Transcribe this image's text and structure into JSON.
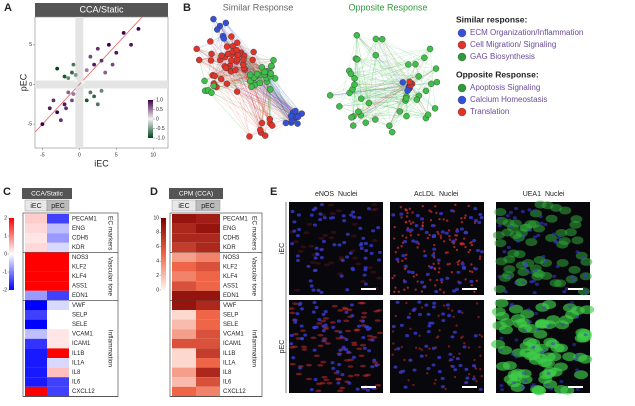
{
  "panel_a": {
    "letter": "A",
    "type": "scatter",
    "title": "CCA/Static",
    "xlabel": "iEC",
    "ylabel": "pEC",
    "xlim": [
      -6,
      12
    ],
    "ylim": [
      -8,
      8.5
    ],
    "xticks": [
      -5,
      0,
      5,
      10
    ],
    "yticks": [
      -5,
      0,
      5
    ],
    "points": {
      "x": [
        2,
        3,
        4,
        5,
        1.5,
        6,
        3.5,
        7,
        2.5,
        1,
        4.5,
        8,
        -2,
        -3,
        -1.5,
        -4,
        -2.5,
        -1,
        -3.5,
        -5,
        -1.8,
        -0.8,
        -1,
        -2,
        -0.8,
        -1.5,
        -0.5,
        1.5,
        2,
        3,
        1,
        -3,
        2.5,
        0.5,
        -0.3,
        0.2,
        -0.5
      ],
      "y": [
        2.5,
        3,
        5,
        4,
        3.5,
        6.5,
        1.5,
        5,
        4.5,
        1.8,
        2.5,
        7,
        -2.5,
        -3.5,
        -1,
        -3,
        -4.5,
        -2,
        -2,
        -5,
        -3,
        -1.2,
        1.5,
        1,
        2.5,
        0.8,
        1.2,
        -1,
        -1.5,
        -0.8,
        -2,
        2,
        -2.5,
        0.3,
        -0.4,
        -0.6,
        0.5
      ],
      "c": [
        0.9,
        0.8,
        1,
        0.9,
        0.7,
        1,
        0.6,
        0.9,
        0.8,
        0.5,
        0.7,
        1,
        0.9,
        1,
        0.6,
        0.9,
        0.8,
        0.7,
        0.8,
        1,
        0.8,
        0.5,
        -0.8,
        -0.9,
        -0.7,
        -0.6,
        -0.5,
        -0.7,
        -0.8,
        -0.6,
        -0.9,
        -1,
        -0.7,
        0,
        0.1,
        -0.1,
        0
      ]
    },
    "clim": [
      -1,
      1
    ],
    "cmap": [
      "#00441b",
      "#f2f2f2",
      "#40004b"
    ],
    "cticks": [
      {
        "value": 1,
        "label": "1.0"
      },
      0.5,
      0,
      -0.5,
      {
        "value": -1,
        "label": "-1.0"
      }
    ]
  },
  "panel_b": {
    "letter": "B",
    "titles": [
      "Similar Response",
      "Opposite Response"
    ],
    "legend": [
      {
        "heading": "Similar response:",
        "color": "#5b3a8c",
        "items": [
          {
            "label": "ECM Organization/Inflammation",
            "color": "#3550d8"
          },
          {
            "label": "Cell Migration/ Signaling",
            "color": "#e0342b"
          },
          {
            "label": "GAG Biosynthesis",
            "color": "#2e9a3a"
          }
        ]
      },
      {
        "heading": "Opposite Response:",
        "color": "#2e9a3a",
        "items": [
          {
            "label": "Apoptosis Signaling",
            "color": "#2e9a3a"
          },
          {
            "label": "Calcium Homeostasis",
            "color": "#3550d8"
          },
          {
            "label": "Translation",
            "color": "#e0342b"
          }
        ]
      }
    ]
  },
  "panel_c": {
    "letter": "C",
    "title": "CCA/Static",
    "columns": [
      "iEC",
      "pEC"
    ],
    "clim": [
      -2,
      2
    ],
    "cmap": [
      "#0000ff",
      "#ffffff",
      "#ff0000"
    ],
    "cticks": [
      2,
      1,
      0,
      -1,
      -2
    ],
    "groups": [
      {
        "label": "EC markers",
        "genes": [
          "PECAM1",
          "ENG",
          "CDH5",
          "KDR"
        ],
        "values": [
          [
            0.4,
            -1.5
          ],
          [
            0.3,
            -0.5
          ],
          [
            0.2,
            -0.8
          ],
          [
            0.3,
            -0.3
          ]
        ]
      },
      {
        "label": "Vascular tone",
        "genes": [
          "NOS3",
          "KLF2",
          "KLF4",
          "ASS1",
          "EDN1"
        ],
        "values": [
          [
            2,
            2
          ],
          [
            2,
            2
          ],
          [
            2,
            2
          ],
          [
            2,
            2
          ],
          [
            -0.8,
            -1.5
          ]
        ]
      },
      {
        "label": "Inflammation",
        "genes": [
          "VWF",
          "SELP",
          "SELE",
          "VCAM1",
          "ICAM1",
          "IL1B",
          "IL1A",
          "IL8",
          "IL6",
          "CXCL12"
        ],
        "values": [
          [
            -2,
            -0.3
          ],
          [
            -1.5,
            0
          ],
          [
            -2,
            0
          ],
          [
            -0.5,
            0.2
          ],
          [
            -1.6,
            0.2
          ],
          [
            -1.8,
            2
          ],
          [
            -1.8,
            -0.3
          ],
          [
            -1.8,
            0.5
          ],
          [
            -1.8,
            -1.5
          ],
          [
            2,
            -1.5
          ]
        ]
      }
    ]
  },
  "panel_d": {
    "letter": "D",
    "title": "CPM (CCA)",
    "columns": [
      "iEC",
      "pEC"
    ],
    "clim": [
      0,
      10
    ],
    "cmap": [
      "#fff5f0",
      "#ef6548",
      "#7f0000"
    ],
    "cticks": [
      10,
      8,
      6,
      4,
      2,
      0
    ],
    "groups": [
      {
        "label": "EC markers",
        "genes": [
          "PECAM1",
          "ENG",
          "CDH5",
          "KDR"
        ],
        "values": [
          [
            9,
            8.5
          ],
          [
            8,
            9
          ],
          [
            8,
            8
          ],
          [
            7,
            8
          ]
        ]
      },
      {
        "label": "Vascular tone",
        "genes": [
          "NOS3",
          "KLF2",
          "KLF4",
          "ASS1",
          "EDN1"
        ],
        "values": [
          [
            3,
            4
          ],
          [
            5,
            6
          ],
          [
            4,
            5
          ],
          [
            6,
            5
          ],
          [
            9,
            9
          ]
        ]
      },
      {
        "label": "Inflammation",
        "genes": [
          "VWF",
          "SELP",
          "SELE",
          "VCAM1",
          "ICAM1",
          "IL1B",
          "IL1A",
          "IL8",
          "IL6",
          "CXCL12"
        ],
        "values": [
          [
            9,
            8
          ],
          [
            1,
            5
          ],
          [
            2,
            5
          ],
          [
            3,
            6
          ],
          [
            6,
            6
          ],
          [
            1,
            7
          ],
          [
            1,
            5
          ],
          [
            3,
            8
          ],
          [
            2,
            6
          ],
          [
            5,
            4
          ]
        ]
      }
    ]
  },
  "panel_e": {
    "letter": "E",
    "columns": [
      {
        "stain": "eNOS",
        "stain_color": "#e0342b",
        "counterstain": "Nuclei",
        "counterstain_color": "#5a5ae0"
      },
      {
        "stain": "AcLDL",
        "stain_color": "#e0342b",
        "counterstain": "Nuclei",
        "counterstain_color": "#5a5ae0"
      },
      {
        "stain": "UEA1",
        "stain_color": "#2e9a3a",
        "counterstain": "Nuclei",
        "counterstain_color": "#5a5ae0"
      }
    ],
    "rows": [
      "iEC",
      "pEC"
    ]
  }
}
